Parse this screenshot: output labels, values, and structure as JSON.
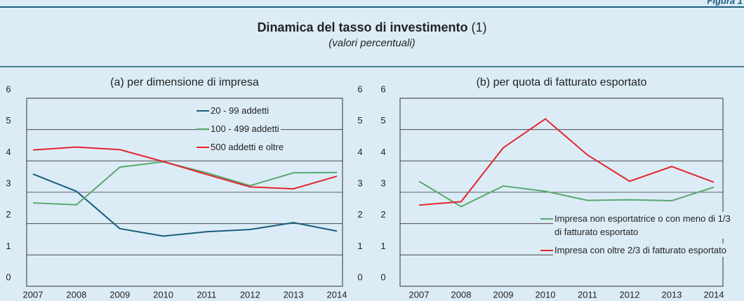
{
  "figure_label": "Figura 1",
  "title": "Dinamica del tasso di investimento",
  "title_note": "(1)",
  "subtitle": "(valori percentuali)",
  "chart_data": [
    {
      "type": "line",
      "title": "(a) per dimensione di impresa",
      "categories": [
        "2007",
        "2008",
        "2009",
        "2010",
        "2011",
        "2012",
        "2013",
        "2014"
      ],
      "series": [
        {
          "name": "20 - 99 addetti",
          "color": "#1a5e7e",
          "values": [
            3.58,
            3.03,
            1.84,
            1.6,
            1.74,
            1.81,
            2.03,
            1.76
          ]
        },
        {
          "name": "100 - 499 addetti",
          "color": "#5aa870",
          "values": [
            2.66,
            2.6,
            3.8,
            3.97,
            3.62,
            3.21,
            3.62,
            3.63
          ]
        },
        {
          "name": "500 addetti e oltre",
          "color": "#e3262b",
          "values": [
            4.35,
            4.44,
            4.36,
            3.98,
            3.57,
            3.17,
            3.11,
            3.51
          ]
        }
      ],
      "ylim": [
        0,
        6
      ],
      "yticks": [
        0,
        1,
        2,
        3,
        4,
        5,
        6
      ],
      "grid": true,
      "legend": "top"
    },
    {
      "type": "line",
      "title": "(b) per quota di fatturato esportato",
      "categories": [
        "2007",
        "2008",
        "2009",
        "2010",
        "2011",
        "2012",
        "2013",
        "2014"
      ],
      "series": [
        {
          "name": "Impresa non esportatrice o con meno di 1/3 di fatturato esportato",
          "color": "#5aa870",
          "values": [
            3.35,
            2.54,
            3.2,
            3.03,
            2.74,
            2.76,
            2.73,
            3.16
          ]
        },
        {
          "name": "Impresa con oltre 2/3 di fatturato esportato",
          "color": "#e3262b",
          "values": [
            2.59,
            2.7,
            4.42,
            5.34,
            4.19,
            3.35,
            3.82,
            3.32
          ]
        }
      ],
      "ylim": [
        0,
        6
      ],
      "yticks": [
        0,
        1,
        2,
        3,
        4,
        5,
        6
      ],
      "grid": true,
      "legend": "lower right"
    }
  ]
}
